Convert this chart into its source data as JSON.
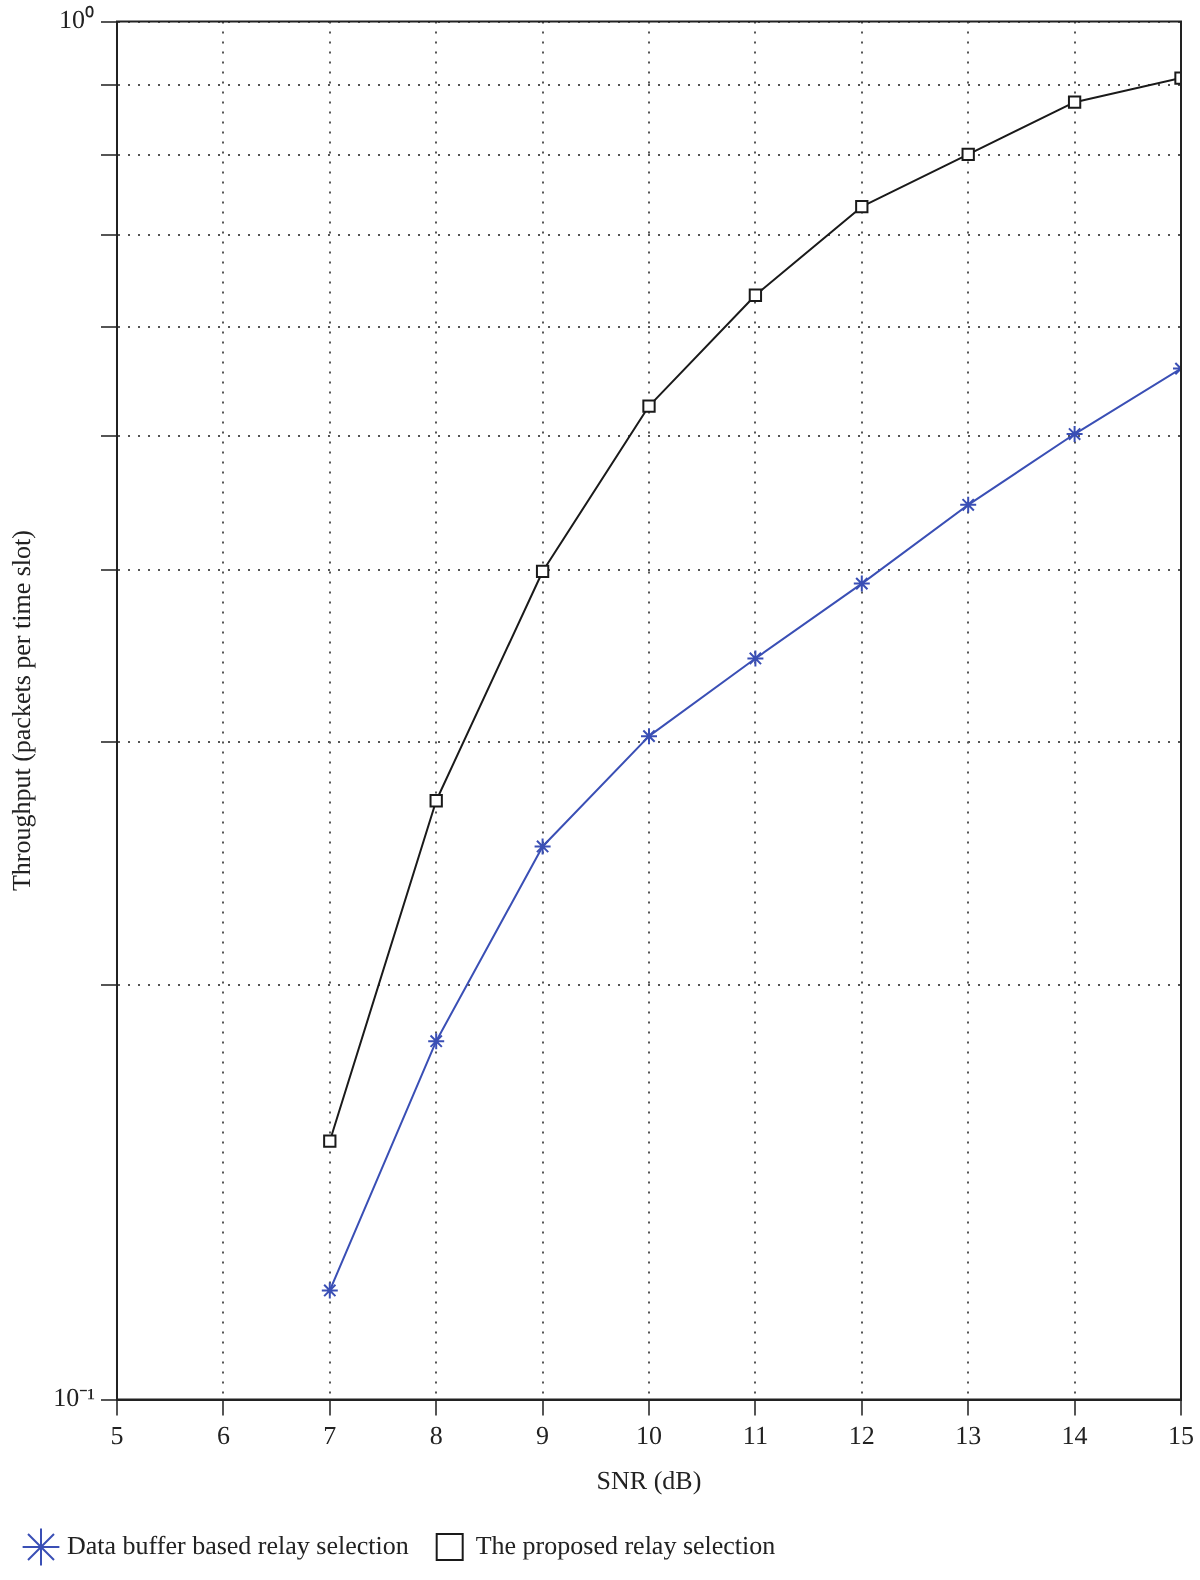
{
  "chart_data": {
    "type": "line",
    "xlabel": "SNR (dB)",
    "ylabel": "Throughput (packets per time slot)",
    "x": [
      7,
      8,
      9,
      10,
      11,
      12,
      13,
      14,
      15
    ],
    "series": [
      {
        "name": "Data buffer based relay selection",
        "color": "#3a4fb5",
        "marker": "cross",
        "values": [
          0.12,
          0.182,
          0.252,
          0.303,
          0.345,
          0.391,
          0.446,
          0.502,
          0.56
        ]
      },
      {
        "name": "The proposed relay selection",
        "color": "#1a1a1a",
        "marker": "square",
        "values": [
          0.154,
          0.272,
          0.399,
          0.526,
          0.633,
          0.734,
          0.801,
          0.874,
          0.91
        ]
      }
    ],
    "xlim": [
      5,
      15
    ],
    "xticks": [
      5,
      6,
      7,
      8,
      9,
      10,
      11,
      12,
      13,
      14,
      15
    ],
    "log": "y",
    "ylim": [
      0.1,
      1
    ],
    "yticks": [
      {
        "value": 0.1,
        "label": "10⁻¹"
      },
      {
        "value": 0.2,
        "label": null
      },
      {
        "value": 0.3,
        "label": null
      },
      {
        "value": 0.4,
        "label": null
      },
      {
        "value": 0.5,
        "label": null
      },
      {
        "value": 0.6,
        "label": null
      },
      {
        "value": 0.7,
        "label": null
      },
      {
        "value": 0.8,
        "label": null
      },
      {
        "value": 0.9,
        "label": null
      },
      {
        "value": 1,
        "label": "10⁰"
      }
    ],
    "grid": true,
    "legend": "bottom left",
    "line_style": "solid"
  }
}
